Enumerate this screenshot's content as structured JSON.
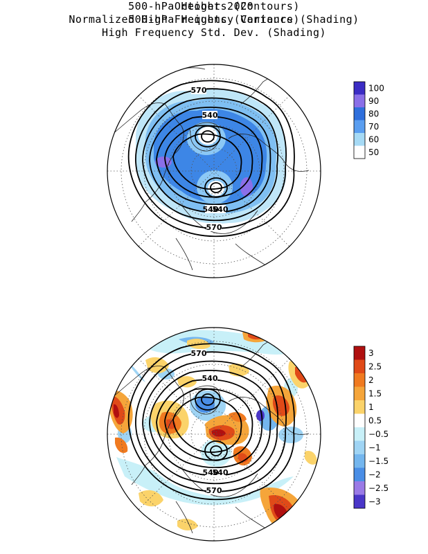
{
  "maps": [
    {
      "title_lines": [
        "October 2020",
        "500-hPa Heights (Contours)",
        "High Frequency Std. Dev. (Shading)"
      ],
      "contour_labels": [
        "570",
        "540",
        "540",
        "540",
        "570"
      ],
      "colorbar": {
        "labels": [
          "100",
          "90",
          "80",
          "70",
          "60",
          "50"
        ],
        "colors": [
          "#3b2cc4",
          "#8a6fe8",
          "#2f6fdc",
          "#5a9ef0",
          "#a6daf5",
          "#ffffff"
        ]
      }
    },
    {
      "title_lines": [
        "500-hPa Heights (Contours)",
        "Normalized High Frequency Variance (Shading)"
      ],
      "contour_labels": [
        "570",
        "540",
        "540",
        "540",
        "570"
      ],
      "colorbar": {
        "labels": [
          "3",
          "2.5",
          "2",
          "1.5",
          "1",
          "0.5",
          "−0.5",
          "−1",
          "−1.5",
          "−2",
          "−2.5",
          "−3"
        ],
        "colors": [
          "#b01010",
          "#e04a18",
          "#f07a20",
          "#f5a53a",
          "#fbd36a",
          "#ffffff",
          "#c8f0f8",
          "#9fd4f4",
          "#74b6ee",
          "#4a8ee6",
          "#9a7ae6",
          "#4a36c8"
        ]
      }
    }
  ]
}
